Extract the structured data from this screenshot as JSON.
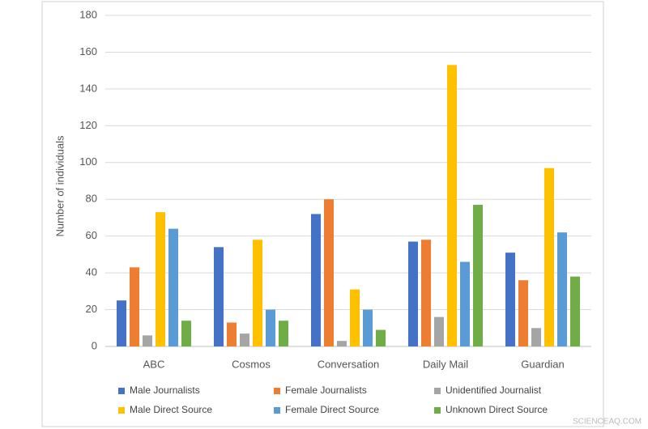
{
  "chart_data": {
    "type": "bar",
    "y_label": "Number of individuals",
    "categories": [
      "ABC",
      "Cosmos",
      "Conversation",
      "Daily Mail",
      "Guardian"
    ],
    "series": [
      {
        "name": "Male Journalists",
        "color": "#4472c4",
        "values": [
          25,
          54,
          72,
          57,
          51
        ]
      },
      {
        "name": "Female Journalists",
        "color": "#ed7d31",
        "values": [
          43,
          13,
          80,
          58,
          36
        ]
      },
      {
        "name": "Unidentified Journalist",
        "color": "#a5a5a5",
        "values": [
          6,
          7,
          3,
          16,
          10
        ]
      },
      {
        "name": "Male Direct Source",
        "color": "#ffc000",
        "values": [
          73,
          58,
          31,
          153,
          97
        ]
      },
      {
        "name": "Female Direct Source",
        "color": "#5b9bd5",
        "values": [
          64,
          20,
          20,
          46,
          62
        ]
      },
      {
        "name": "Unknown Direct Source",
        "color": "#70ad47",
        "values": [
          14,
          14,
          9,
          77,
          38
        ]
      }
    ],
    "ylim": [
      0,
      180
    ],
    "yticks": [
      0,
      20,
      40,
      60,
      80,
      100,
      120,
      140,
      160,
      180
    ],
    "grid": true,
    "legend": "bottom"
  },
  "watermark": "SCIENCEAQ.COM"
}
